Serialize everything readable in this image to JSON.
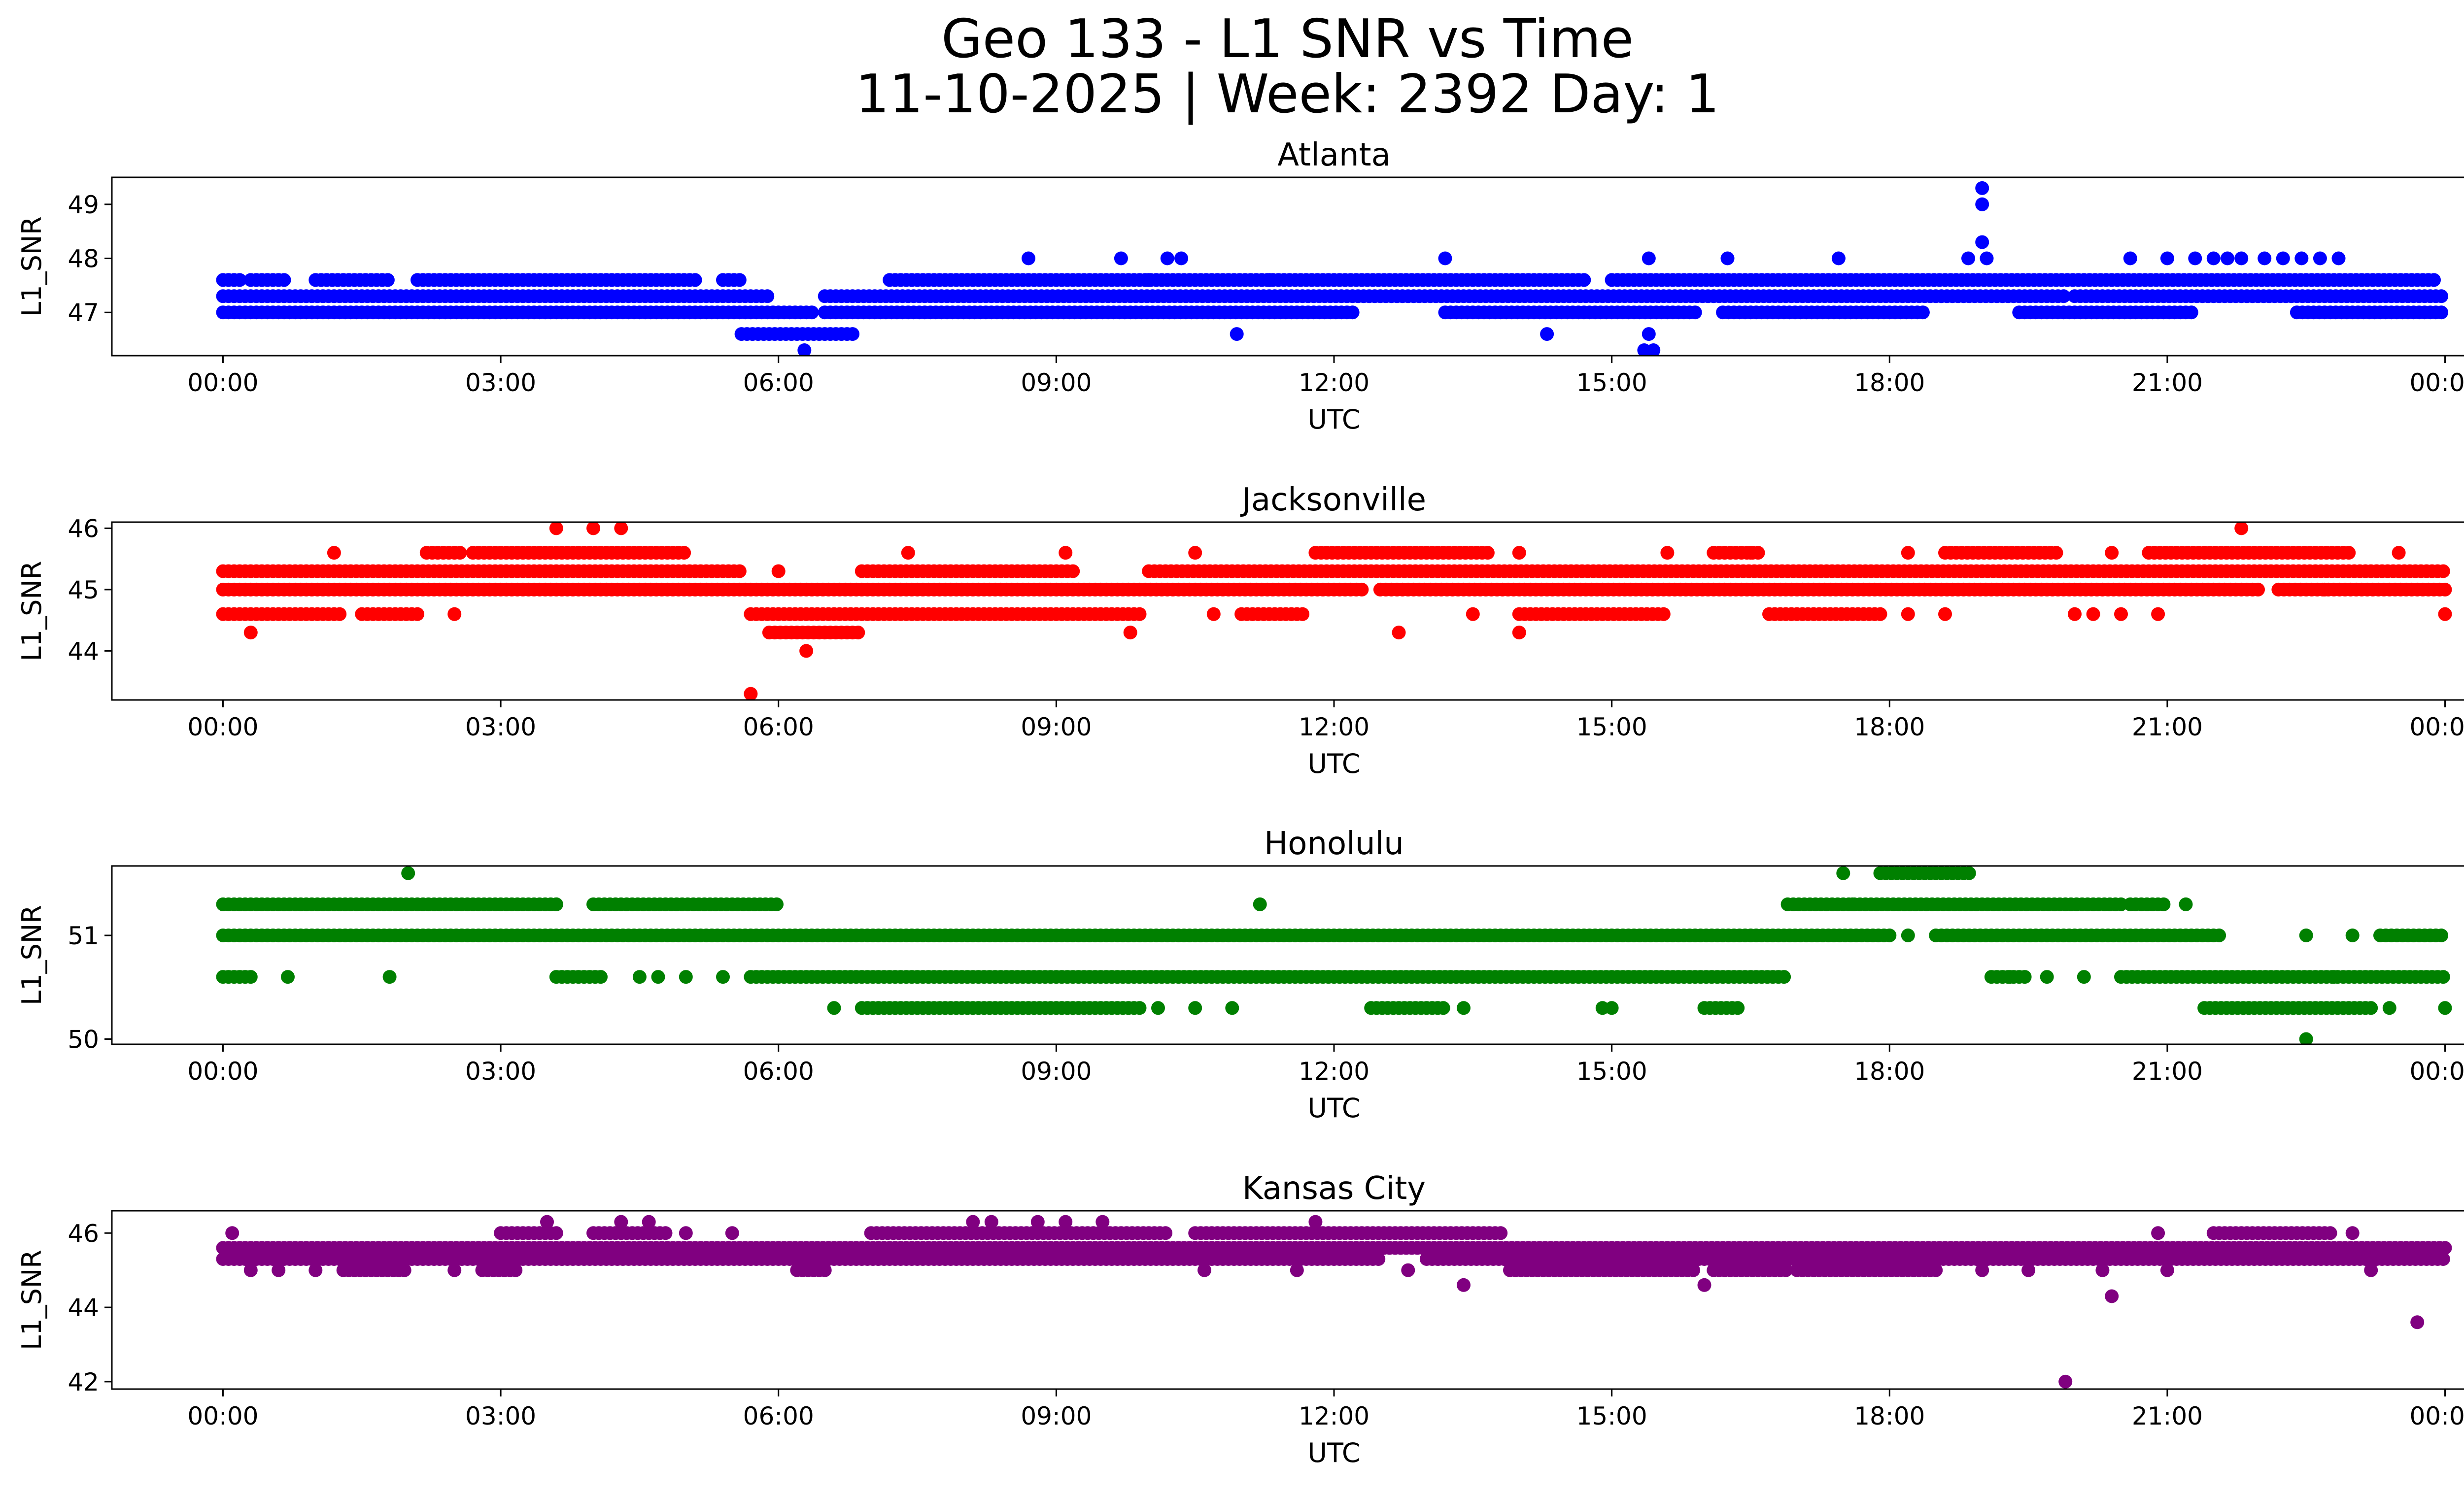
{
  "figure": {
    "title_line1": "Geo 133 - L1 SNR vs Time",
    "title_line2": "11-10-2025 | Week: 2392 Day: 1"
  },
  "chart_data": [
    {
      "type": "scatter",
      "title": "Atlanta",
      "xlabel": "UTC",
      "ylabel": "L1_SNR",
      "color": "#0000ff",
      "x_unit": "hours UTC",
      "xlim": [
        -1.2,
        25.2
      ],
      "ylim": [
        46.2,
        49.5
      ],
      "x_ticks": [
        0,
        3,
        6,
        9,
        12,
        15,
        18,
        21,
        24
      ],
      "x_tick_labels": [
        "00:00",
        "03:00",
        "06:00",
        "09:00",
        "12:00",
        "15:00",
        "18:00",
        "21:00",
        "00:00"
      ],
      "y_ticks": [
        47,
        48,
        49
      ],
      "bands": [
        {
          "y": 47.6,
          "segments": [
            [
              0.0,
              0.2
            ],
            [
              0.3,
              0.7
            ],
            [
              1.0,
              1.8
            ],
            [
              2.1,
              5.1
            ],
            [
              5.4,
              5.6
            ],
            [
              7.2,
              14.7
            ],
            [
              15.0,
              23.9
            ]
          ]
        },
        {
          "y": 47.3,
          "segments": [
            [
              0.0,
              5.9
            ],
            [
              6.5,
              19.9
            ],
            [
              20.0,
              24.0
            ]
          ]
        },
        {
          "y": 47.0,
          "segments": [
            [
              0.0,
              6.4
            ],
            [
              6.5,
              12.2
            ],
            [
              13.2,
              15.9
            ],
            [
              16.2,
              18.4
            ],
            [
              19.4,
              21.3
            ],
            [
              22.4,
              24.0
            ]
          ]
        },
        {
          "y": 46.6,
          "segments": [
            [
              5.6,
              6.8
            ]
          ]
        }
      ],
      "points": [
        [
          8.7,
          48.0
        ],
        [
          9.7,
          48.0
        ],
        [
          10.2,
          48.0
        ],
        [
          10.35,
          48.0
        ],
        [
          13.2,
          48.0
        ],
        [
          15.4,
          48.0
        ],
        [
          16.25,
          48.0
        ],
        [
          17.45,
          48.0
        ],
        [
          18.85,
          48.0
        ],
        [
          19.05,
          48.0
        ],
        [
          20.6,
          48.0
        ],
        [
          21.0,
          48.0
        ],
        [
          21.3,
          48.0
        ],
        [
          21.5,
          48.0
        ],
        [
          21.65,
          48.0
        ],
        [
          21.8,
          48.0
        ],
        [
          22.05,
          48.0
        ],
        [
          22.25,
          48.0
        ],
        [
          22.45,
          48.0
        ],
        [
          22.65,
          48.0
        ],
        [
          22.85,
          48.0
        ],
        [
          19.0,
          48.3
        ],
        [
          19.0,
          49.0
        ],
        [
          19.0,
          49.3
        ],
        [
          6.28,
          46.3
        ],
        [
          15.35,
          46.3
        ],
        [
          15.45,
          46.3
        ],
        [
          15.4,
          46.6
        ],
        [
          14.3,
          46.6
        ],
        [
          10.95,
          46.6
        ],
        [
          11.3,
          47.6
        ],
        [
          10.0,
          47.6
        ]
      ]
    },
    {
      "type": "scatter",
      "title": "Jacksonville",
      "xlabel": "UTC",
      "ylabel": "L1_SNR",
      "color": "#ff0000",
      "x_unit": "hours UTC",
      "xlim": [
        -1.2,
        25.2
      ],
      "ylim": [
        43.2,
        46.1
      ],
      "x_ticks": [
        0,
        3,
        6,
        9,
        12,
        15,
        18,
        21,
        24
      ],
      "x_tick_labels": [
        "00:00",
        "03:00",
        "06:00",
        "09:00",
        "12:00",
        "15:00",
        "18:00",
        "21:00",
        "00:00"
      ],
      "y_ticks": [
        44,
        45,
        46
      ],
      "bands": [
        {
          "y": 45.6,
          "segments": [
            [
              2.2,
              2.6
            ],
            [
              2.7,
              5.0
            ],
            [
              11.8,
              13.7
            ],
            [
              16.1,
              16.6
            ],
            [
              18.6,
              19.8
            ],
            [
              20.8,
              23.0
            ]
          ]
        },
        {
          "y": 45.3,
          "segments": [
            [
              0.0,
              5.6
            ],
            [
              6.9,
              9.2
            ],
            [
              10.0,
              24.0
            ]
          ]
        },
        {
          "y": 45.0,
          "segments": [
            [
              0.0,
              12.3
            ],
            [
              12.5,
              22.0
            ],
            [
              22.2,
              24.0
            ]
          ]
        },
        {
          "y": 44.6,
          "segments": [
            [
              0.0,
              1.3
            ],
            [
              1.5,
              2.1
            ],
            [
              5.7,
              9.9
            ],
            [
              11.0,
              11.7
            ],
            [
              14.0,
              15.6
            ],
            [
              16.7,
              17.9
            ]
          ]
        },
        {
          "y": 44.3,
          "segments": [
            [
              5.9,
              6.9
            ]
          ]
        }
      ],
      "points": [
        [
          0.3,
          44.3
        ],
        [
          1.2,
          45.6
        ],
        [
          2.5,
          44.6
        ],
        [
          3.6,
          46.0
        ],
        [
          4.0,
          46.0
        ],
        [
          4.3,
          46.0
        ],
        [
          5.7,
          43.3
        ],
        [
          6.3,
          44.0
        ],
        [
          6.0,
          45.3
        ],
        [
          7.4,
          45.6
        ],
        [
          9.8,
          44.3
        ],
        [
          10.5,
          45.6
        ],
        [
          12.7,
          44.3
        ],
        [
          13.5,
          44.6
        ],
        [
          14.0,
          44.3
        ],
        [
          14.0,
          45.6
        ],
        [
          16.5,
          45.6
        ],
        [
          18.2,
          45.6
        ],
        [
          18.6,
          44.6
        ],
        [
          18.2,
          44.6
        ],
        [
          21.8,
          46.0
        ],
        [
          22.7,
          45.0
        ],
        [
          23.5,
          45.6
        ],
        [
          24.0,
          44.6
        ],
        [
          20.2,
          44.6
        ],
        [
          20.0,
          44.6
        ],
        [
          20.5,
          44.6
        ],
        [
          20.9,
          44.6
        ],
        [
          20.4,
          45.6
        ],
        [
          15.6,
          45.6
        ],
        [
          10.7,
          44.6
        ],
        [
          9.1,
          45.6
        ]
      ]
    },
    {
      "type": "scatter",
      "title": "Honolulu",
      "xlabel": "UTC",
      "ylabel": "L1_SNR",
      "color": "#008000",
      "x_unit": "hours UTC",
      "xlim": [
        -1.2,
        25.2
      ],
      "ylim": [
        49.95,
        51.67
      ],
      "x_ticks": [
        0,
        3,
        6,
        9,
        12,
        15,
        18,
        21,
        24
      ],
      "x_tick_labels": [
        "00:00",
        "03:00",
        "06:00",
        "09:00",
        "12:00",
        "15:00",
        "18:00",
        "21:00",
        "00:00"
      ],
      "y_ticks": [
        50,
        51
      ],
      "bands": [
        {
          "y": 51.6,
          "segments": [
            [
              17.9,
              18.9
            ]
          ]
        },
        {
          "y": 51.3,
          "segments": [
            [
              0.0,
              3.6
            ],
            [
              4.0,
              6.0
            ],
            [
              16.9,
              20.5
            ],
            [
              20.6,
              21.0
            ]
          ]
        },
        {
          "y": 51.0,
          "segments": [
            [
              0.0,
              18.0
            ],
            [
              18.5,
              21.6
            ],
            [
              23.3,
              24.0
            ]
          ]
        },
        {
          "y": 50.6,
          "segments": [
            [
              0.0,
              0.3
            ],
            [
              3.6,
              4.1
            ],
            [
              5.7,
              16.9
            ],
            [
              19.1,
              19.5
            ],
            [
              20.5,
              24.0
            ]
          ]
        },
        {
          "y": 50.3,
          "segments": [
            [
              6.9,
              9.9
            ],
            [
              12.4,
              13.2
            ],
            [
              16.0,
              16.4
            ],
            [
              21.4,
              23.2
            ]
          ]
        }
      ],
      "points": [
        [
          0.7,
          50.6
        ],
        [
          1.8,
          50.6
        ],
        [
          2.0,
          51.6
        ],
        [
          4.5,
          50.6
        ],
        [
          4.7,
          50.6
        ],
        [
          5.0,
          50.6
        ],
        [
          5.4,
          50.6
        ],
        [
          6.6,
          50.3
        ],
        [
          10.1,
          50.3
        ],
        [
          10.5,
          50.3
        ],
        [
          10.9,
          50.3
        ],
        [
          11.2,
          51.3
        ],
        [
          13.4,
          50.3
        ],
        [
          14.9,
          50.3
        ],
        [
          15.0,
          50.3
        ],
        [
          17.5,
          51.6
        ],
        [
          17.6,
          51.3
        ],
        [
          18.2,
          51.0
        ],
        [
          19.7,
          50.6
        ],
        [
          20.1,
          50.6
        ],
        [
          21.2,
          51.3
        ],
        [
          22.5,
          51.0
        ],
        [
          22.5,
          50.0
        ],
        [
          23.4,
          50.3
        ],
        [
          24.0,
          50.3
        ],
        [
          3.6,
          51.3
        ],
        [
          19.3,
          50.6
        ],
        [
          22.8,
          50.6
        ],
        [
          23.0,
          51.0
        ]
      ]
    },
    {
      "type": "scatter",
      "title": "Kansas City",
      "xlabel": "UTC",
      "ylabel": "L1_SNR",
      "color": "#800080",
      "x_unit": "hours UTC",
      "xlim": [
        -1.2,
        25.2
      ],
      "ylim": [
        41.8,
        46.6
      ],
      "x_ticks": [
        0,
        3,
        6,
        9,
        12,
        15,
        18,
        21,
        24
      ],
      "x_tick_labels": [
        "00:00",
        "03:00",
        "06:00",
        "09:00",
        "12:00",
        "15:00",
        "18:00",
        "21:00",
        "00:00"
      ],
      "y_ticks": [
        42,
        44,
        46
      ],
      "bands": [
        {
          "y": 46.0,
          "segments": [
            [
              3.0,
              3.6
            ],
            [
              4.0,
              4.8
            ],
            [
              7.0,
              10.2
            ],
            [
              10.5,
              13.8
            ],
            [
              21.5,
              22.8
            ]
          ]
        },
        {
          "y": 45.6,
          "segments": [
            [
              0.0,
              24.0
            ]
          ]
        },
        {
          "y": 45.3,
          "segments": [
            [
              0.0,
              12.5
            ],
            [
              13.0,
              24.0
            ]
          ]
        },
        {
          "y": 45.0,
          "segments": [
            [
              1.3,
              2.0
            ],
            [
              2.8,
              3.2
            ],
            [
              6.2,
              6.5
            ],
            [
              13.9,
              15.9
            ],
            [
              16.1,
              16.9
            ],
            [
              17.0,
              18.5
            ]
          ]
        }
      ],
      "points": [
        [
          0.1,
          46.0
        ],
        [
          0.3,
          45.0
        ],
        [
          0.6,
          45.0
        ],
        [
          1.0,
          45.0
        ],
        [
          1.9,
          45.0
        ],
        [
          2.5,
          45.0
        ],
        [
          3.5,
          46.3
        ],
        [
          4.3,
          46.3
        ],
        [
          4.6,
          46.3
        ],
        [
          5.0,
          46.0
        ],
        [
          5.5,
          46.0
        ],
        [
          8.1,
          46.3
        ],
        [
          8.3,
          46.3
        ],
        [
          8.8,
          46.3
        ],
        [
          9.1,
          46.3
        ],
        [
          9.5,
          46.3
        ],
        [
          10.6,
          45.0
        ],
        [
          11.8,
          46.3
        ],
        [
          11.6,
          45.0
        ],
        [
          12.8,
          45.0
        ],
        [
          13.4,
          44.6
        ],
        [
          16.0,
          44.6
        ],
        [
          19.9,
          42.0
        ],
        [
          20.4,
          44.3
        ],
        [
          20.3,
          45.0
        ],
        [
          21.0,
          45.0
        ],
        [
          20.9,
          46.0
        ],
        [
          23.0,
          46.0
        ],
        [
          23.7,
          43.6
        ],
        [
          23.2,
          45.0
        ],
        [
          19.0,
          45.0
        ],
        [
          19.5,
          45.0
        ]
      ]
    }
  ]
}
